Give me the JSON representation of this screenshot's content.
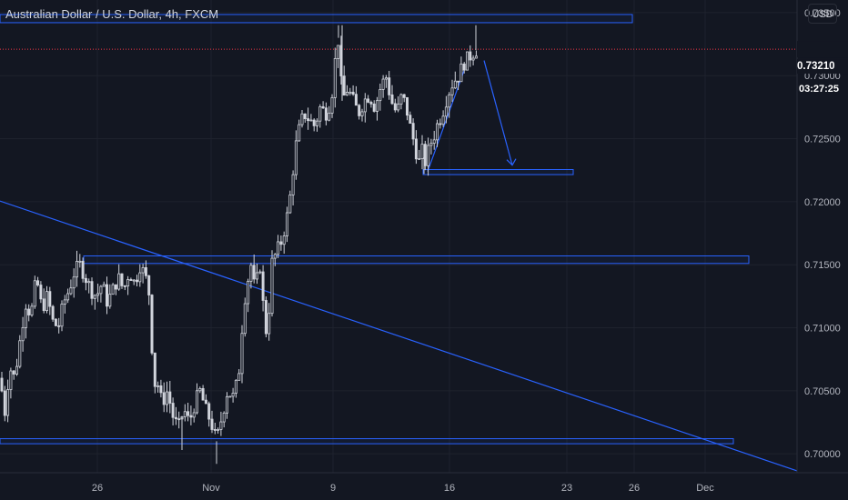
{
  "header": {
    "symbol_title": "Australian Dollar / U.S. Dollar, 4h, FXCM",
    "currency": "USD"
  },
  "price_axis": {
    "current_price": "0.73210",
    "countdown": "03:27:25"
  },
  "colors": {
    "background": "#131722",
    "grid": "#1e222d",
    "candle": "#d1d4dc",
    "drawing": "#2962ff",
    "current_price_line": "#f23645",
    "axis_text": "#b2b5be"
  },
  "chart_data": {
    "type": "candlestick",
    "title": "Australian Dollar / U.S. Dollar, 4h, FXCM",
    "xlabel": "",
    "ylabel": "",
    "ylim": [
      0.6985,
      0.736
    ],
    "y_ticks": [
      "0.73500",
      "0.73000",
      "0.72500",
      "0.72000",
      "0.71500",
      "0.71000",
      "0.70500",
      "0.70000"
    ],
    "x_ticks": [
      {
        "label": "26",
        "date": "2020-10-26"
      },
      {
        "label": "Nov",
        "date": "2020-11-02"
      },
      {
        "label": "9",
        "date": "2020-11-09"
      },
      {
        "label": "16",
        "date": "2020-11-16"
      },
      {
        "label": "23",
        "date": "2020-11-23"
      },
      {
        "label": "26",
        "date": "2020-11-26"
      },
      {
        "label": "Dec",
        "date": "2020-12-01"
      }
    ],
    "close_path": [
      [
        0,
        0.706
      ],
      [
        6,
        0.703
      ],
      [
        10,
        0.707
      ],
      [
        16,
        0.706
      ],
      [
        22,
        0.709
      ],
      [
        28,
        0.712
      ],
      [
        34,
        0.711
      ],
      [
        40,
        0.714
      ],
      [
        46,
        0.7115
      ],
      [
        52,
        0.7125
      ],
      [
        58,
        0.7105
      ],
      [
        64,
        0.71
      ],
      [
        70,
        0.712
      ],
      [
        76,
        0.713
      ],
      [
        82,
        0.7145
      ],
      [
        88,
        0.715
      ],
      [
        94,
        0.714
      ],
      [
        100,
        0.713
      ],
      [
        106,
        0.7125
      ],
      [
        112,
        0.7135
      ],
      [
        118,
        0.712
      ],
      [
        124,
        0.713
      ],
      [
        130,
        0.714
      ],
      [
        136,
        0.713
      ],
      [
        142,
        0.7145
      ],
      [
        148,
        0.7135
      ],
      [
        154,
        0.715
      ],
      [
        160,
        0.714
      ],
      [
        166,
        0.712
      ],
      [
        168,
        0.705
      ],
      [
        172,
        0.706
      ],
      [
        178,
        0.704
      ],
      [
        184,
        0.705
      ],
      [
        190,
        0.703
      ],
      [
        196,
        0.702
      ],
      [
        202,
        0.7035
      ],
      [
        208,
        0.7025
      ],
      [
        214,
        0.704
      ],
      [
        220,
        0.705
      ],
      [
        226,
        0.7035
      ],
      [
        232,
        0.7025
      ],
      [
        238,
        0.701
      ],
      [
        244,
        0.703
      ],
      [
        250,
        0.705
      ],
      [
        256,
        0.7045
      ],
      [
        262,
        0.706
      ],
      [
        266,
        0.71
      ],
      [
        270,
        0.713
      ],
      [
        276,
        0.715
      ],
      [
        280,
        0.713
      ],
      [
        286,
        0.715
      ],
      [
        290,
        0.711
      ],
      [
        294,
        0.709
      ],
      [
        298,
        0.715
      ],
      [
        304,
        0.716
      ],
      [
        310,
        0.717
      ],
      [
        316,
        0.719
      ],
      [
        320,
        0.721
      ],
      [
        324,
        0.724
      ],
      [
        328,
        0.7255
      ],
      [
        334,
        0.727
      ],
      [
        340,
        0.7265
      ],
      [
        346,
        0.726
      ],
      [
        352,
        0.7275
      ],
      [
        358,
        0.727
      ],
      [
        364,
        0.728
      ],
      [
        368,
        0.731
      ],
      [
        372,
        0.733
      ],
      [
        376,
        0.728
      ],
      [
        382,
        0.729
      ],
      [
        388,
        0.728
      ],
      [
        394,
        0.727
      ],
      [
        400,
        0.728
      ],
      [
        406,
        0.7285
      ],
      [
        412,
        0.7275
      ],
      [
        418,
        0.729
      ],
      [
        424,
        0.73
      ],
      [
        430,
        0.728
      ],
      [
        436,
        0.727
      ],
      [
        442,
        0.7285
      ],
      [
        448,
        0.727
      ],
      [
        452,
        0.7255
      ],
      [
        456,
        0.7245
      ],
      [
        460,
        0.723
      ],
      [
        464,
        0.724
      ],
      [
        468,
        0.723
      ],
      [
        472,
        0.7245
      ],
      [
        476,
        0.725
      ],
      [
        480,
        0.726
      ],
      [
        486,
        0.727
      ],
      [
        492,
        0.7285
      ],
      [
        498,
        0.7295
      ],
      [
        504,
        0.73
      ],
      [
        510,
        0.731
      ],
      [
        516,
        0.7315
      ],
      [
        522,
        0.732
      ],
      [
        526,
        0.7321
      ]
    ],
    "high_wick_points": [
      [
        372,
        0.734
      ],
      [
        376,
        0.734
      ],
      [
        523,
        0.734
      ]
    ],
    "low_wick_points": [
      [
        238,
        0.6992
      ],
      [
        200,
        0.7003
      ],
      [
        466,
        0.7222
      ]
    ],
    "drawings": {
      "resistance_zone": {
        "x0": 0,
        "x1": 695,
        "y_top": 0.73485,
        "y_bottom": 0.7342
      },
      "target_zone": {
        "x0": 465,
        "x1": 630,
        "y_top": 0.72255,
        "y_bottom": 0.72215
      },
      "mid_zone": {
        "x0": 92,
        "x1": 823,
        "y_top": 0.7157,
        "y_bottom": 0.7151
      },
      "support_zone": {
        "x0": 0,
        "x1": 806,
        "y_top": 0.7012,
        "y_bottom": 0.7008
      },
      "trendline": {
        "x0": 0,
        "y0": 0.72005,
        "x1": 876,
        "y1": 0.69865
      },
      "rising_line": {
        "x0": 470,
        "y0": 0.7224,
        "x1": 510,
        "y1": 0.7304
      },
      "down_arrow": {
        "x0": 532,
        "y0": 0.7312,
        "x1": 563,
        "y1": 0.7229
      }
    },
    "current_price": 0.7321
  }
}
